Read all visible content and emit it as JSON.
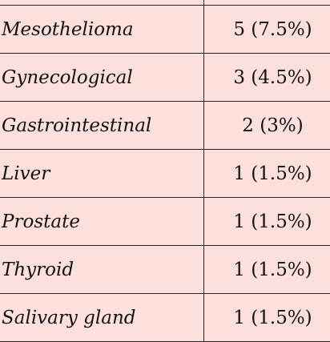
{
  "rows": [
    {
      "label": "",
      "value": ""
    },
    {
      "label": "Mesothelioma",
      "value": "5 (7.5%)"
    },
    {
      "label": "Gynecological",
      "value": "3 (4.5%)"
    },
    {
      "label": "Gastrointestinal",
      "value": "2 (3%)"
    },
    {
      "label": "Liver",
      "value": "1 (1.5%)"
    },
    {
      "label": "Prostate",
      "value": "1 (1.5%)"
    },
    {
      "label": "Thyroid",
      "value": "1 (1.5%)"
    },
    {
      "label": "Salivary gland",
      "value": "1 (1.5%)"
    }
  ]
}
